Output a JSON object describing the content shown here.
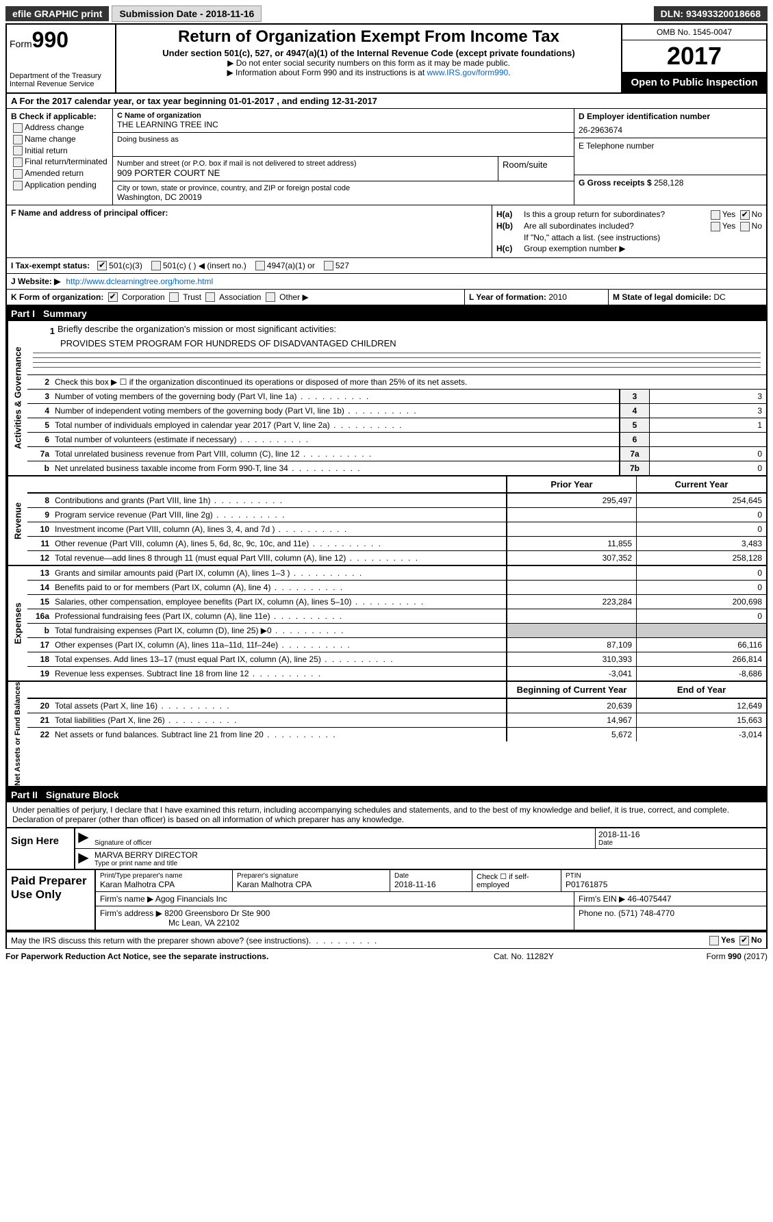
{
  "topbar": {
    "efile": "efile GRAPHIC print",
    "sub_label": "Submission Date - ",
    "sub_date": "2018-11-16",
    "dln": "DLN: 93493320018668"
  },
  "header": {
    "form_word": "Form",
    "form_num": "990",
    "dept1": "Department of the Treasury",
    "dept2": "Internal Revenue Service",
    "title": "Return of Organization Exempt From Income Tax",
    "sub": "Under section 501(c), 527, or 4947(a)(1) of the Internal Revenue Code (except private foundations)",
    "note1": "▶ Do not enter social security numbers on this form as it may be made public.",
    "note2_a": "▶ Information about Form 990 and its instructions is at ",
    "note2_link": "www.IRS.gov/form990",
    "omb": "OMB No. 1545-0047",
    "year": "2017",
    "open": "Open to Public Inspection"
  },
  "section_a": "A  For the 2017 calendar year, or tax year beginning 01-01-2017   , and ending 12-31-2017",
  "B": {
    "title": "B Check if applicable:",
    "items": [
      "Address change",
      "Name change",
      "Initial return",
      "Final return/terminated",
      "Amended return",
      "Application pending"
    ]
  },
  "C": {
    "name_lbl": "C Name of organization",
    "name": "THE LEARNING TREE INC",
    "dba_lbl": "Doing business as",
    "street_lbl": "Number and street (or P.O. box if mail is not delivered to street address)",
    "room_lbl": "Room/suite",
    "street": "909 PORTER COURT NE",
    "city_lbl": "City or town, state or province, country, and ZIP or foreign postal code",
    "city": "Washington, DC  20019"
  },
  "D": {
    "lbl": "D Employer identification number",
    "val": "26-2963674"
  },
  "E": {
    "lbl": "E Telephone number",
    "val": ""
  },
  "G": {
    "lbl": "G Gross receipts $ ",
    "val": "258,128"
  },
  "F": {
    "lbl": "F  Name and address of principal officer:"
  },
  "H": {
    "a_lbl": "H(a)",
    "a_txt": "Is this a group return for subordinates?",
    "a_yes": "Yes",
    "a_no": "No",
    "b_lbl": "H(b)",
    "b_txt": "Are all subordinates included?",
    "b_note": "If \"No,\" attach a list. (see instructions)",
    "c_lbl": "H(c)",
    "c_txt": "Group exemption number ▶"
  },
  "I": {
    "lbl": "I  Tax-exempt status:",
    "o1": "501(c)(3)",
    "o2": "501(c) (  ) ◀ (insert no.)",
    "o3": "4947(a)(1) or",
    "o4": "527"
  },
  "J": {
    "lbl": "J  Website: ▶",
    "val": "http://www.dclearningtree.org/home.html"
  },
  "K": {
    "lbl": "K Form of organization:",
    "o1": "Corporation",
    "o2": "Trust",
    "o3": "Association",
    "o4": "Other ▶"
  },
  "L": {
    "lbl": "L Year of formation: ",
    "val": "2010"
  },
  "M": {
    "lbl": "M State of legal domicile: ",
    "val": "DC"
  },
  "part1": {
    "num": "Part I",
    "title": "Summary"
  },
  "act_gov": {
    "tab": "Activities & Governance",
    "l1_lbl": "Briefly describe the organization's mission or most significant activities:",
    "l1_val": "PROVIDES STEM PROGRAM FOR HUNDREDS OF DISADVANTAGED CHILDREN",
    "l2": "Check this box ▶ ☐  if the organization discontinued its operations or disposed of more than 25% of its net assets.",
    "rows": [
      {
        "n": "3",
        "d": "Number of voting members of the governing body (Part VI, line 1a)",
        "ln": "3",
        "v": "3"
      },
      {
        "n": "4",
        "d": "Number of independent voting members of the governing body (Part VI, line 1b)",
        "ln": "4",
        "v": "3"
      },
      {
        "n": "5",
        "d": "Total number of individuals employed in calendar year 2017 (Part V, line 2a)",
        "ln": "5",
        "v": "1"
      },
      {
        "n": "6",
        "d": "Total number of volunteers (estimate if necessary)",
        "ln": "6",
        "v": ""
      },
      {
        "n": "7a",
        "d": "Total unrelated business revenue from Part VIII, column (C), line 12",
        "ln": "7a",
        "v": "0"
      },
      {
        "n": "b",
        "d": "Net unrelated business taxable income from Form 990-T, line 34",
        "ln": "7b",
        "v": "0"
      }
    ]
  },
  "cols": {
    "prior": "Prior Year",
    "current": "Current Year",
    "beg": "Beginning of Current Year",
    "end": "End of Year"
  },
  "revenue": {
    "tab": "Revenue",
    "rows": [
      {
        "n": "8",
        "d": "Contributions and grants (Part VIII, line 1h)",
        "p": "295,497",
        "c": "254,645"
      },
      {
        "n": "9",
        "d": "Program service revenue (Part VIII, line 2g)",
        "p": "",
        "c": "0"
      },
      {
        "n": "10",
        "d": "Investment income (Part VIII, column (A), lines 3, 4, and 7d )",
        "p": "",
        "c": "0"
      },
      {
        "n": "11",
        "d": "Other revenue (Part VIII, column (A), lines 5, 6d, 8c, 9c, 10c, and 11e)",
        "p": "11,855",
        "c": "3,483"
      },
      {
        "n": "12",
        "d": "Total revenue—add lines 8 through 11 (must equal Part VIII, column (A), line 12)",
        "p": "307,352",
        "c": "258,128"
      }
    ]
  },
  "expenses": {
    "tab": "Expenses",
    "rows": [
      {
        "n": "13",
        "d": "Grants and similar amounts paid (Part IX, column (A), lines 1–3 )",
        "p": "",
        "c": "0"
      },
      {
        "n": "14",
        "d": "Benefits paid to or for members (Part IX, column (A), line 4)",
        "p": "",
        "c": "0"
      },
      {
        "n": "15",
        "d": "Salaries, other compensation, employee benefits (Part IX, column (A), lines 5–10)",
        "p": "223,284",
        "c": "200,698"
      },
      {
        "n": "16a",
        "d": "Professional fundraising fees (Part IX, column (A), line 11e)",
        "p": "",
        "c": "0"
      },
      {
        "n": "b",
        "d": "Total fundraising expenses (Part IX, column (D), line 25) ▶0",
        "p": "SHADE",
        "c": "SHADE"
      },
      {
        "n": "17",
        "d": "Other expenses (Part IX, column (A), lines 11a–11d, 11f–24e)",
        "p": "87,109",
        "c": "66,116"
      },
      {
        "n": "18",
        "d": "Total expenses. Add lines 13–17 (must equal Part IX, column (A), line 25)",
        "p": "310,393",
        "c": "266,814"
      },
      {
        "n": "19",
        "d": "Revenue less expenses. Subtract line 18 from line 12",
        "p": "-3,041",
        "c": "-8,686"
      }
    ]
  },
  "netassets": {
    "tab": "Net Assets or Fund Balances",
    "rows": [
      {
        "n": "20",
        "d": "Total assets (Part X, line 16)",
        "p": "20,639",
        "c": "12,649"
      },
      {
        "n": "21",
        "d": "Total liabilities (Part X, line 26)",
        "p": "14,967",
        "c": "15,663"
      },
      {
        "n": "22",
        "d": "Net assets or fund balances. Subtract line 21 from line 20",
        "p": "5,672",
        "c": "-3,014"
      }
    ]
  },
  "part2": {
    "num": "Part II",
    "title": "Signature Block"
  },
  "sig": {
    "decl": "Under penalties of perjury, I declare that I have examined this return, including accompanying schedules and statements, and to the best of my knowledge and belief, it is true, correct, and complete. Declaration of preparer (other than officer) is based on all information of which preparer has any knowledge.",
    "sign_here": "Sign Here",
    "sig_lbl": "Signature of officer",
    "date_lbl": "Date",
    "sig_date": "2018-11-16",
    "name": "MARVA BERRY DIRECTOR",
    "name_lbl": "Type or print name and title"
  },
  "prep": {
    "title": "Paid Preparer Use Only",
    "h1": "Print/Type preparer's name",
    "v1": "Karan Malhotra CPA",
    "h2": "Preparer's signature",
    "v2": "Karan Malhotra CPA",
    "h3": "Date",
    "v3": "2018-11-16",
    "h4": "Check ☐ if self-employed",
    "h5": "PTIN",
    "v5": "P01761875",
    "firm_lbl": "Firm's name    ▶ ",
    "firm": "Agog Financials Inc",
    "ein_lbl": "Firm's EIN ▶ ",
    "ein": "46-4075447",
    "addr_lbl": "Firm's address ▶ ",
    "addr1": "8200 Greensboro Dr Ste 900",
    "addr2": "Mc Lean, VA  22102",
    "phone_lbl": "Phone no. ",
    "phone": "(571) 748-4770"
  },
  "discuss": {
    "txt": "May the IRS discuss this return with the preparer shown above? (see instructions)",
    "yes": "Yes",
    "no": "No"
  },
  "footer": {
    "l": "For Paperwork Reduction Act Notice, see the separate instructions.",
    "m": "Cat. No. 11282Y",
    "r": "Form 990 (2017)"
  }
}
